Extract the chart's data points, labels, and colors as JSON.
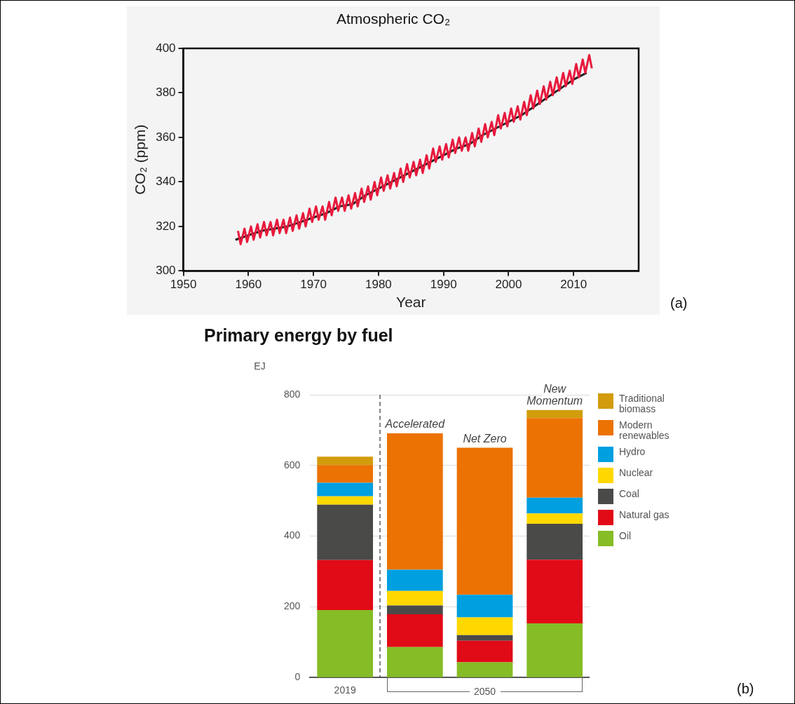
{
  "chart_data": [
    {
      "type": "line",
      "title": "Atmospheric CO₂",
      "xlabel": "Year",
      "ylabel": "CO₂ (ppm)",
      "xlim": [
        1950,
        2020
      ],
      "xticks": [
        1950,
        1960,
        1970,
        1980,
        1990,
        2000,
        2010
      ],
      "ylim": [
        300,
        400
      ],
      "yticks": [
        300,
        320,
        340,
        360,
        380,
        400
      ],
      "annotations": [
        "(a)"
      ],
      "series": [
        {
          "color": "#e8193c",
          "x": [
            1958.4,
            1958.8,
            1959.4,
            1959.8,
            1960.4,
            1960.8,
            1961.4,
            1961.8,
            1962.4,
            1962.8,
            1963.4,
            1963.8,
            1964.4,
            1964.8,
            1965.4,
            1965.8,
            1966.4,
            1966.8,
            1967.4,
            1967.8,
            1968.4,
            1968.8,
            1969.4,
            1969.8,
            1970.4,
            1970.8,
            1971.4,
            1971.8,
            1972.4,
            1972.8,
            1973.4,
            1973.8,
            1974.4,
            1974.8,
            1975.4,
            1975.8,
            1976.4,
            1976.8,
            1977.4,
            1977.8,
            1978.4,
            1978.8,
            1979.4,
            1979.8,
            1980.4,
            1980.8,
            1981.4,
            1981.8,
            1982.4,
            1982.8,
            1983.4,
            1983.8,
            1984.4,
            1984.8,
            1985.4,
            1985.8,
            1986.4,
            1986.8,
            1987.4,
            1987.8,
            1988.4,
            1988.8,
            1989.4,
            1989.8,
            1990.4,
            1990.8,
            1991.4,
            1991.8,
            1992.4,
            1992.8,
            1993.4,
            1993.8,
            1994.4,
            1994.8,
            1995.4,
            1995.8,
            1996.4,
            1996.8,
            1997.4,
            1997.8,
            1998.4,
            1998.8,
            1999.4,
            1999.8,
            2000.4,
            2000.8,
            2001.4,
            2001.8,
            2002.4,
            2002.8,
            2003.4,
            2003.8,
            2004.4,
            2004.8,
            2005.4,
            2005.8,
            2006.4,
            2006.8,
            2007.4,
            2007.8,
            2008.4,
            2008.8,
            2009.4,
            2009.8,
            2010.4,
            2010.8,
            2011.4,
            2011.8,
            2012.4,
            2012.8
          ],
          "values": [
            318,
            312,
            319,
            313,
            320,
            314,
            321,
            315,
            322,
            316,
            322,
            316,
            323,
            317,
            323,
            317,
            324,
            318,
            325,
            319,
            326,
            320,
            328,
            322,
            329,
            323,
            329,
            323,
            331,
            325,
            333,
            327,
            333,
            327,
            334,
            328,
            335,
            329,
            337,
            331,
            338,
            332,
            340,
            334,
            342,
            336,
            343,
            337,
            344,
            338,
            346,
            340,
            348,
            342,
            349,
            343,
            350,
            344,
            352,
            346,
            355,
            349,
            356,
            350,
            357,
            351,
            359,
            353,
            360,
            354,
            360,
            354,
            362,
            356,
            364,
            358,
            366,
            360,
            367,
            361,
            370,
            364,
            371,
            365,
            373,
            367,
            374,
            368,
            376,
            370,
            379,
            373,
            381,
            375,
            383,
            377,
            385,
            379,
            387,
            381,
            389,
            383,
            390,
            384,
            393,
            387,
            395,
            389,
            397,
            391
          ]
        },
        {
          "color": "#222222",
          "x": [
            1958,
            1960,
            1962,
            1964,
            1966,
            1968,
            1970,
            1972,
            1974,
            1976,
            1978,
            1980,
            1982,
            1984,
            1986,
            1988,
            1990,
            1992,
            1994,
            1996,
            1998,
            2000,
            2002,
            2004,
            2006,
            2008,
            2010,
            2012
          ],
          "values": [
            314,
            316,
            318,
            319,
            320,
            322,
            324,
            326,
            329,
            330,
            334,
            337,
            340,
            343,
            346,
            349,
            352,
            355,
            357,
            361,
            364,
            367,
            370,
            374,
            378,
            382,
            386,
            389
          ]
        }
      ]
    },
    {
      "type": "bar",
      "title": "Primary energy by fuel",
      "ylabel": "EJ",
      "categories": [
        "2019",
        null,
        null,
        null
      ],
      "stacked": true,
      "ylim": [
        0,
        800
      ],
      "yticks": [
        0,
        200,
        400,
        600,
        800
      ],
      "grid": "y",
      "legend": "right",
      "annotations": [
        {
          "text": "Accelerated",
          "y": 691
        },
        {
          "text": "Net Zero",
          "y": 650
        },
        {
          "text": "New Momentum",
          "y": 757
        },
        "2050",
        "(b)"
      ],
      "series": [
        {
          "name": "Oil",
          "color": "#86bc25",
          "values": [
            191,
            86,
            43,
            153
          ]
        },
        {
          "name": "Natural gas",
          "color": "#e10a17",
          "values": [
            141,
            93,
            61,
            180
          ]
        },
        {
          "name": "Coal",
          "color": "#4a4a49",
          "values": [
            157,
            25,
            16,
            102
          ]
        },
        {
          "name": "Nuclear",
          "color": "#ffd800",
          "values": [
            24,
            41,
            50,
            29
          ]
        },
        {
          "name": "Hydro",
          "color": "#009fe0",
          "values": [
            38,
            60,
            64,
            45
          ]
        },
        {
          "name": "Modern renewables",
          "color": "#ec7204",
          "values": [
            50,
            386,
            416,
            225
          ]
        },
        {
          "name": "Traditional biomass",
          "color": "#d29c0c",
          "values": [
            24,
            0,
            0,
            23
          ]
        }
      ]
    }
  ]
}
